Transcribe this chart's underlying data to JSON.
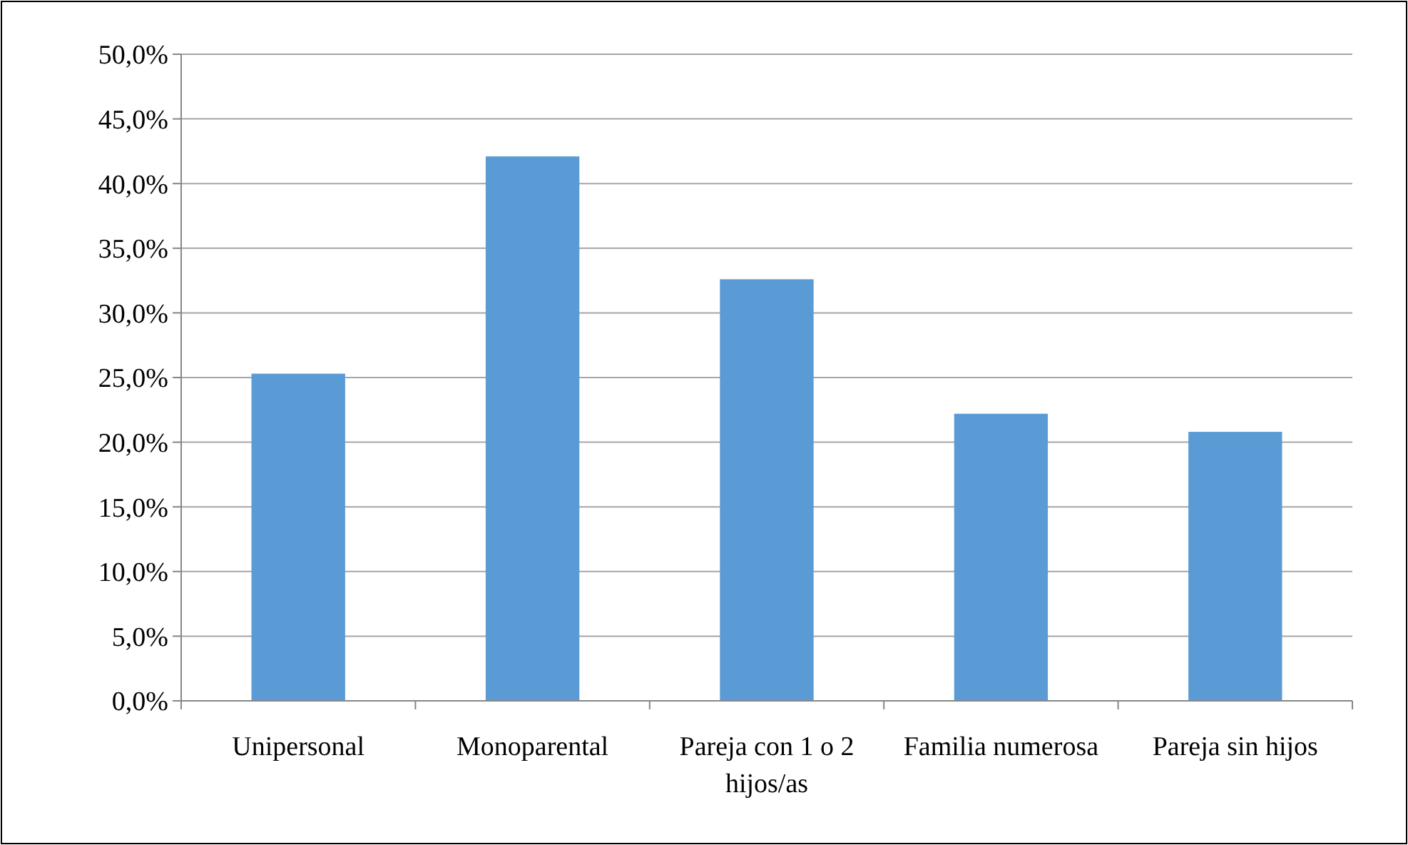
{
  "chart_data": {
    "type": "bar",
    "categories": [
      "Unipersonal",
      "Monoparental",
      "Pareja con 1 o 2 hijos/as",
      "Familia numerosa",
      "Pareja sin hijos"
    ],
    "values": [
      25.3,
      42.1,
      32.6,
      22.2,
      20.8
    ],
    "color": "#5b9bd5",
    "ylim": [
      0,
      50
    ],
    "yticks": [
      {
        "value": 0,
        "label": "0,0%"
      },
      {
        "value": 5,
        "label": "5,0%"
      },
      {
        "value": 10,
        "label": "10,0%"
      },
      {
        "value": 15,
        "label": "15,0%"
      },
      {
        "value": 20,
        "label": "20,0%"
      },
      {
        "value": 25,
        "label": "25,0%"
      },
      {
        "value": 30,
        "label": "30,0%"
      },
      {
        "value": 35,
        "label": "35,0%"
      },
      {
        "value": 40,
        "label": "40,0%"
      },
      {
        "value": 45,
        "label": "45,0%"
      },
      {
        "value": 50,
        "label": "50,0%"
      }
    ],
    "grid": "y"
  }
}
